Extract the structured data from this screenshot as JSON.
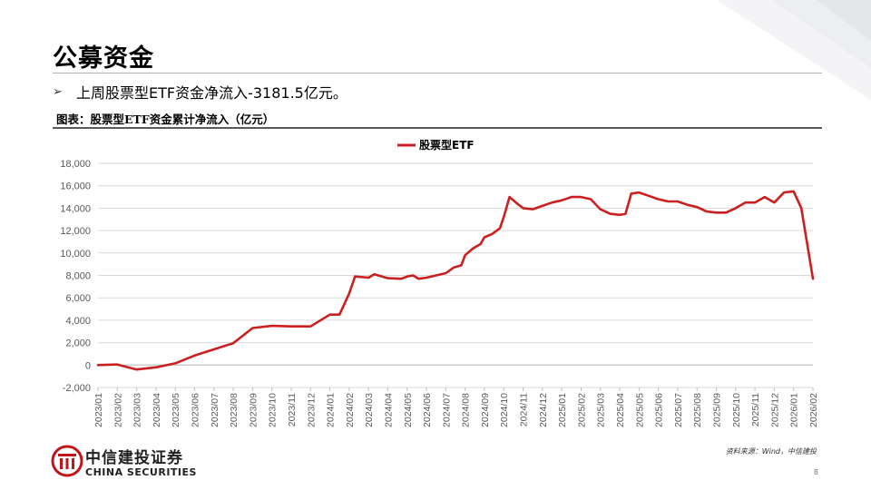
{
  "page": {
    "title": "公募资金",
    "bullet": "上周股票型ETF资金净流入-3181.5亿元。",
    "caption": "图表：股票型ETF资金累计净流入（亿元）",
    "source": "资料来源：Wind，中信建投",
    "page_number": "8",
    "company_cn": "中信建投证券",
    "company_en": "CHINA SECURITIES",
    "brand_color": "#c0161b"
  },
  "chart_data": {
    "type": "line",
    "title": "",
    "xlabel": "",
    "ylabel": "",
    "ylim": [
      -2000,
      18000
    ],
    "yticks": [
      "-2,000",
      "0",
      "2,000",
      "4,000",
      "6,000",
      "8,000",
      "10,000",
      "12,000",
      "14,000",
      "16,000",
      "18,000"
    ],
    "xticks": [
      "2023/01",
      "2023/02",
      "2023/03",
      "2023/04",
      "2023/05",
      "2023/06",
      "2023/07",
      "2023/08",
      "2023/09",
      "2023/10",
      "2023/11",
      "2023/12",
      "2024/01",
      "2024/02",
      "2024/03",
      "2024/04",
      "2024/05",
      "2024/06",
      "2024/07",
      "2024/08",
      "2024/09",
      "2024/10",
      "2024/11",
      "2024/12",
      "2025/01",
      "2025/02",
      "2025/03",
      "2025/04",
      "2025/05",
      "2025/06",
      "2025/07",
      "2025/08",
      "2025/09",
      "2025/10",
      "2025/11",
      "2025/12",
      "2026/01",
      "2026/02"
    ],
    "grid": true,
    "legend_position": "top-center",
    "series": [
      {
        "name": "股票型ETF",
        "color": "#cc1f1f",
        "points": [
          [
            "2023/01",
            0
          ],
          [
            "2023/02",
            50
          ],
          [
            "2023/03",
            -400
          ],
          [
            "2023/04",
            -200
          ],
          [
            "2023/05",
            150
          ],
          [
            "2023/06",
            850
          ],
          [
            "2023/07",
            1400
          ],
          [
            "2023/08",
            1950
          ],
          [
            "2023/09",
            3300
          ],
          [
            "2023/10",
            3500
          ],
          [
            "2023/11",
            3450
          ],
          [
            "2023/12",
            3450
          ],
          [
            "2024/01",
            4500
          ],
          [
            "2024/01.5",
            4500
          ],
          [
            "2024/02",
            6400
          ],
          [
            "2024/02.3",
            7900
          ],
          [
            "2024/03",
            7800
          ],
          [
            "2024/03.3",
            8100
          ],
          [
            "2024/04",
            7750
          ],
          [
            "2024/04.7",
            7700
          ],
          [
            "2024/05",
            7900
          ],
          [
            "2024/05.3",
            8000
          ],
          [
            "2024/05.6",
            7700
          ],
          [
            "2024/06",
            7800
          ],
          [
            "2024/07",
            8200
          ],
          [
            "2024/07.4",
            8700
          ],
          [
            "2024/07.8",
            8900
          ],
          [
            "2024/08",
            9800
          ],
          [
            "2024/08.4",
            10400
          ],
          [
            "2024/08.8",
            10800
          ],
          [
            "2024/09",
            11400
          ],
          [
            "2024/09.4",
            11700
          ],
          [
            "2024/09.8",
            12200
          ],
          [
            "2024/10",
            13200
          ],
          [
            "2024/10.3",
            15000
          ],
          [
            "2024/10.7",
            14400
          ],
          [
            "2024/11",
            14000
          ],
          [
            "2024/11.5",
            13900
          ],
          [
            "2024/12",
            14200
          ],
          [
            "2024/12.5",
            14500
          ],
          [
            "2025/01",
            14700
          ],
          [
            "2025/01.5",
            15000
          ],
          [
            "2025/02",
            15000
          ],
          [
            "2025/02.5",
            14800
          ],
          [
            "2025/03",
            13900
          ],
          [
            "2025/03.5",
            13500
          ],
          [
            "2025/04",
            13400
          ],
          [
            "2025/04.3",
            13500
          ],
          [
            "2025/04.6",
            15300
          ],
          [
            "2025/05",
            15400
          ],
          [
            "2025/05.5",
            15100
          ],
          [
            "2025/06",
            14800
          ],
          [
            "2025/06.5",
            14600
          ],
          [
            "2025/07",
            14600
          ],
          [
            "2025/07.5",
            14300
          ],
          [
            "2025/08",
            14100
          ],
          [
            "2025/08.5",
            13700
          ],
          [
            "2025/09",
            13600
          ],
          [
            "2025/09.5",
            13600
          ],
          [
            "2025/10",
            14000
          ],
          [
            "2025/10.5",
            14500
          ],
          [
            "2025/11",
            14500
          ],
          [
            "2025/11.5",
            15000
          ],
          [
            "2025/12",
            14500
          ],
          [
            "2025/12.5",
            15400
          ],
          [
            "2026/01",
            15500
          ],
          [
            "2026/01.4",
            14000
          ],
          [
            "2026/02",
            7700
          ]
        ]
      }
    ]
  }
}
